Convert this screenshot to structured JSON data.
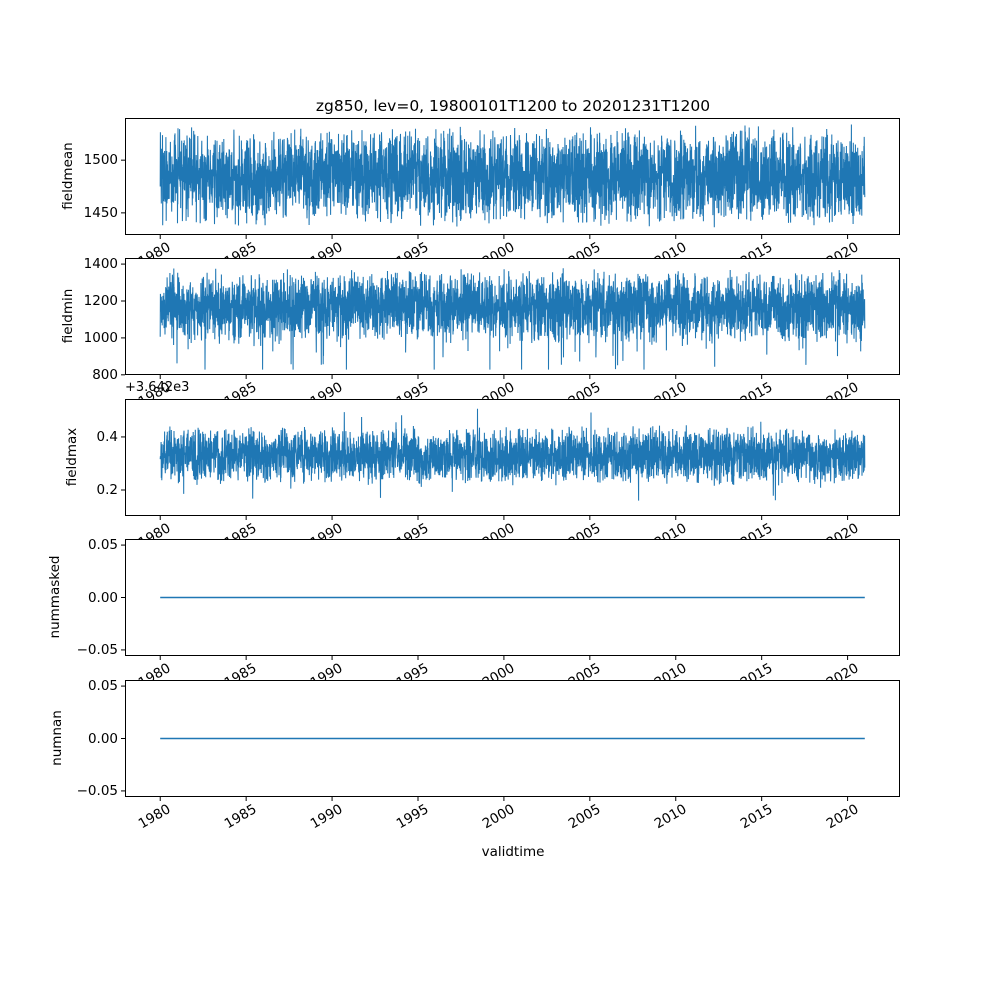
{
  "figure": {
    "title": "zg850, lev=0, 19800101T1200 to 20201231T1200",
    "xlabel": "validtime",
    "background": "#ffffff",
    "line_color": "#1f77b4"
  },
  "x_axis": {
    "lim": [
      1977.95,
      2023.05
    ],
    "data_start": 1980.0,
    "data_end": 2021.0,
    "ticks": [
      1980,
      1985,
      1990,
      1995,
      2000,
      2005,
      2010,
      2015,
      2020
    ],
    "tick_labels": [
      "1980",
      "1985",
      "1990",
      "1995",
      "2000",
      "2005",
      "2010",
      "2015",
      "2020"
    ],
    "tick_label_rotation_deg": 30
  },
  "chart_data": [
    {
      "type": "line",
      "ylabel": "fieldmean",
      "ylim": [
        1429,
        1540
      ],
      "yticks": [
        1450,
        1500
      ],
      "ytick_labels": [
        "1450",
        "1500"
      ],
      "grid": false,
      "series": [
        {
          "name": "fieldmean",
          "kind": "noise",
          "n_points": 14975,
          "center": 1484.5,
          "spread": 50,
          "clamp": [
            1435,
            1534
          ],
          "seed": 11
        }
      ]
    },
    {
      "type": "line",
      "ylabel": "fieldmin",
      "ylim": [
        799,
        1433
      ],
      "yticks": [
        800,
        1000,
        1200,
        1400
      ],
      "ytick_labels": [
        "800",
        "1000",
        "1200",
        "1400"
      ],
      "grid": false,
      "series": [
        {
          "name": "fieldmin",
          "kind": "noise",
          "n_points": 14975,
          "center": 1170,
          "spread": 210,
          "spike": {
            "prob": 0.05,
            "mag": 250,
            "dir": -1
          },
          "clamp": [
            828,
            1403
          ],
          "seed": 22
        }
      ]
    },
    {
      "type": "line",
      "ylabel": "fieldmax",
      "offset_text": "+3.642e3",
      "ylim": [
        0.102,
        0.543
      ],
      "yticks": [
        0.2,
        0.4
      ],
      "ytick_labels": [
        "0.2",
        "0.4"
      ],
      "grid": false,
      "series": [
        {
          "name": "fieldmax",
          "kind": "noise",
          "n_points": 14975,
          "center": 0.33,
          "spread": 0.115,
          "spike": {
            "prob": 0.05,
            "mag": 0.09,
            "dir": 0
          },
          "clamp": [
            0.125,
            0.52
          ],
          "seed": 33
        }
      ]
    },
    {
      "type": "line",
      "ylabel": "nummasked",
      "ylim": [
        -0.0558,
        0.0558
      ],
      "yticks": [
        -0.05,
        0.0,
        0.05
      ],
      "ytick_labels": [
        "−0.05",
        "0.00",
        "0.05"
      ],
      "grid": false,
      "series": [
        {
          "name": "nummasked",
          "kind": "constant",
          "value": 0.0,
          "n_points": 14975
        }
      ]
    },
    {
      "type": "line",
      "ylabel": "numnan",
      "ylim": [
        -0.0558,
        0.0558
      ],
      "yticks": [
        -0.05,
        0.0,
        0.05
      ],
      "ytick_labels": [
        "−0.05",
        "0.00",
        "0.05"
      ],
      "grid": false,
      "series": [
        {
          "name": "numnan",
          "kind": "constant",
          "value": 0.0,
          "n_points": 14975
        }
      ]
    }
  ]
}
